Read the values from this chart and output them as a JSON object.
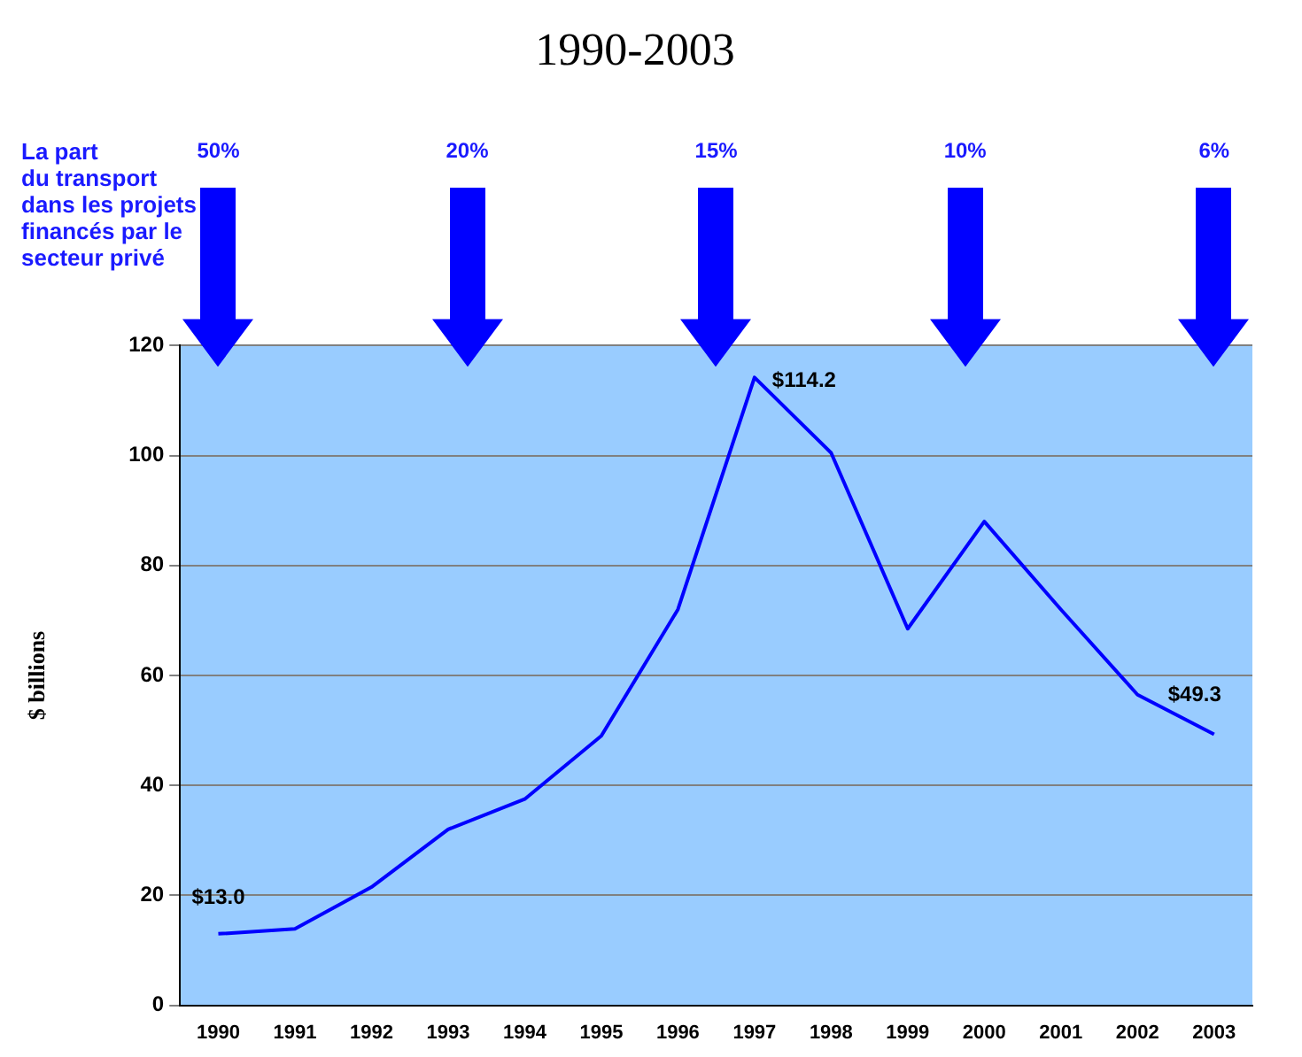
{
  "chart_data": {
    "type": "line",
    "title": "1990-2003",
    "ylabel": "$ billions",
    "categories": [
      "1990",
      "1991",
      "1992",
      "1993",
      "1994",
      "1995",
      "1996",
      "1997",
      "1998",
      "1999",
      "2000",
      "2001",
      "2002",
      "2003"
    ],
    "values": [
      13.0,
      13.9,
      21.5,
      32,
      37.5,
      49,
      72,
      114.2,
      100.5,
      68.5,
      88,
      72,
      56.5,
      49.3
    ],
    "value_labels": [
      "$13.0",
      null,
      null,
      null,
      null,
      null,
      null,
      "$114.2",
      null,
      null,
      null,
      null,
      null,
      "$49.3"
    ],
    "color": "#0000ff",
    "ylim": [
      0,
      120
    ],
    "yticks": [
      0,
      20,
      40,
      60,
      80,
      100,
      120
    ],
    "grid": "y",
    "marker": "none",
    "line_style": "solid",
    "annotations": [
      "La part\ndu transport\ndans les projets\nfinancés par le\nsecteur privé",
      "50%",
      "20%",
      "15%",
      "10%",
      "6%"
    ]
  }
}
